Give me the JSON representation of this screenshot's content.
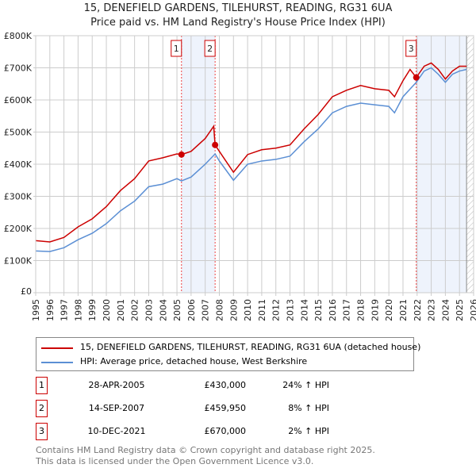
{
  "chart_data": {
    "type": "line",
    "title": "15, DENEFIELD GARDENS, TILEHURST, READING, RG31 6UA",
    "subtitle": "Price paid vs. HM Land Registry's House Price Index (HPI)",
    "xlim": [
      1995,
      2026
    ],
    "ylim": [
      0,
      800000
    ],
    "yticks": [
      0,
      100000,
      200000,
      300000,
      400000,
      500000,
      600000,
      700000,
      800000
    ],
    "ytick_labels": [
      "£0",
      "£100K",
      "£200K",
      "£300K",
      "£400K",
      "£500K",
      "£600K",
      "£700K",
      "£800K"
    ],
    "xticks": [
      "1995",
      "1996",
      "1997",
      "1998",
      "1999",
      "2000",
      "2001",
      "2002",
      "2003",
      "2004",
      "2005",
      "2006",
      "2007",
      "2008",
      "2009",
      "2010",
      "2011",
      "2012",
      "2013",
      "2014",
      "2015",
      "2016",
      "2017",
      "2018",
      "2019",
      "2020",
      "2021",
      "2022",
      "2023",
      "2024",
      "2025",
      "2026"
    ],
    "grid": true,
    "series": [
      {
        "name": "15, DENEFIELD GARDENS, TILEHURST, READING, RG31 6UA (detached house)",
        "color": "#cc0000",
        "x": [
          1995,
          1996,
          1997,
          1998,
          1999,
          2000,
          2001,
          2002,
          2003,
          2004,
          2005,
          2005.32,
          2006,
          2007,
          2007.6,
          2007.7,
          2008,
          2009,
          2010,
          2011,
          2012,
          2013,
          2014,
          2015,
          2016,
          2017,
          2018,
          2019,
          2020,
          2020.4,
          2021,
          2021.5,
          2021.94,
          2022.5,
          2023,
          2023.5,
          2024,
          2024.5,
          2025,
          2025.5
        ],
        "y": [
          162000,
          158000,
          172000,
          205000,
          230000,
          268000,
          318000,
          355000,
          410000,
          420000,
          432000,
          430000,
          440000,
          480000,
          518000,
          460000,
          440000,
          375000,
          430000,
          445000,
          450000,
          460000,
          510000,
          555000,
          610000,
          630000,
          645000,
          635000,
          630000,
          610000,
          660000,
          695000,
          670000,
          705000,
          715000,
          695000,
          665000,
          690000,
          705000,
          705000
        ]
      },
      {
        "name": "HPI: Average price, detached house, West Berkshire",
        "color": "#5b8fd4",
        "x": [
          1995,
          1996,
          1997,
          1998,
          1999,
          2000,
          2001,
          2002,
          2003,
          2004,
          2005,
          2005.32,
          2006,
          2007,
          2007.7,
          2008,
          2009,
          2010,
          2011,
          2012,
          2013,
          2014,
          2015,
          2016,
          2017,
          2018,
          2019,
          2020,
          2020.4,
          2021,
          2021.94,
          2022.5,
          2023,
          2023.5,
          2024,
          2024.5,
          2025,
          2025.5
        ],
        "y": [
          130000,
          128000,
          140000,
          165000,
          185000,
          215000,
          255000,
          285000,
          330000,
          338000,
          355000,
          348000,
          360000,
          400000,
          432000,
          410000,
          350000,
          400000,
          410000,
          415000,
          425000,
          470000,
          510000,
          560000,
          580000,
          590000,
          585000,
          580000,
          560000,
          610000,
          655000,
          690000,
          700000,
          680000,
          655000,
          680000,
          690000,
          695000
        ]
      }
    ],
    "sales": [
      {
        "label": "1",
        "x": 2005.32,
        "price": 430000,
        "date": "28-APR-2005",
        "price_text": "£430,000",
        "hpi_text": "24% ↑ HPI"
      },
      {
        "label": "2",
        "x": 2007.7,
        "price": 459950,
        "date": "14-SEP-2007",
        "price_text": "£459,950",
        "hpi_text": "8% ↑ HPI"
      },
      {
        "label": "3",
        "x": 2021.94,
        "price": 670000,
        "date": "10-DEC-2021",
        "price_text": "£670,000",
        "hpi_text": "2% ↑ HPI"
      }
    ],
    "shaded_ranges": [
      [
        2005.32,
        2007.7
      ],
      [
        2021.94,
        2025.5
      ]
    ],
    "forecast_start": 2025.5,
    "legend_placement": "bottom"
  },
  "footer": {
    "line1": "Contains HM Land Registry data © Crown copyright and database right 2025.",
    "line2": "This data is licensed under the Open Government Licence v3.0."
  }
}
